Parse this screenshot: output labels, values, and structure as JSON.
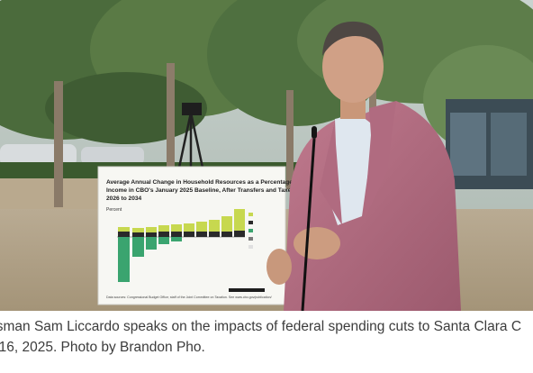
{
  "caption": {
    "line1": "ssman Sam Liccardo speaks on the impacts of federal spending cuts to Santa Clara C",
    "line2": ". 16, 2025. Photo by Brandon Pho."
  },
  "sign": {
    "title_lines": [
      "Average Annual Change in Household Resources as a Percentage of",
      "Income in CBO's January 2025 Baseline, After Transfers and Taxes,",
      "2026 to 2034"
    ],
    "ylabel": "Percent",
    "source": "Data sources: Congressional Budget Office; staff of the Joint Committee on Taxation. See www.cbo.gov/publication/"
  }
}
